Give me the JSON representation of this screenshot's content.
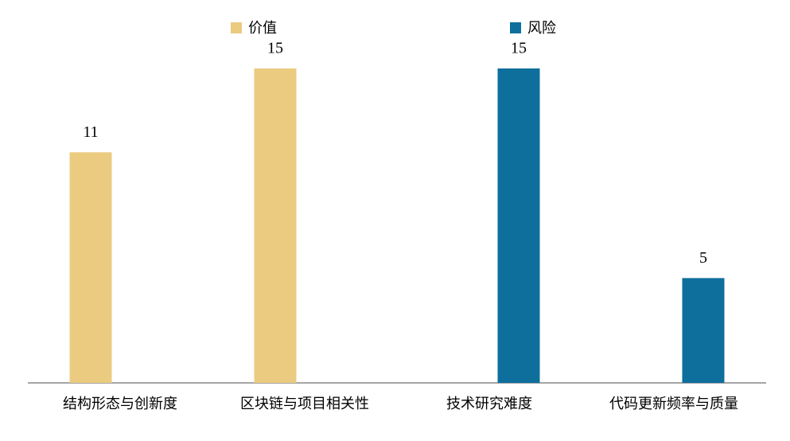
{
  "chart_data": {
    "type": "bar",
    "categories": [
      "结构形态与创新度",
      "区块链与项目相关性",
      "技术研究难度",
      "代码更新频率与质量"
    ],
    "series": [
      {
        "name": "价值",
        "color": "#EBCB80",
        "values": [
          11,
          15,
          null,
          null
        ]
      },
      {
        "name": "风险",
        "color": "#0E6F9C",
        "values": [
          null,
          null,
          15,
          5
        ]
      }
    ],
    "ylim": [
      0,
      15
    ]
  }
}
